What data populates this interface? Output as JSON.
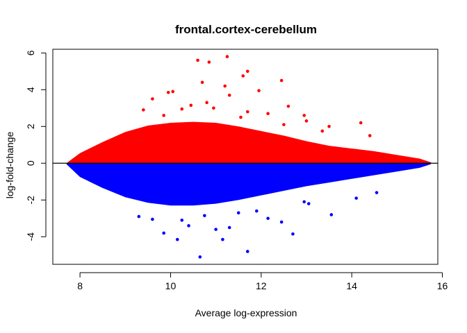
{
  "chart_data": {
    "type": "scatter",
    "title": "frontal.cortex-cerebellum",
    "xlabel": "Average log-expression",
    "ylabel": "log-fold-change",
    "xlim": [
      7.4,
      15.9
    ],
    "ylim": [
      -5.5,
      6.2
    ],
    "xticks": [
      8,
      10,
      12,
      14,
      16
    ],
    "yticks": [
      -4,
      -2,
      0,
      2,
      4,
      6
    ],
    "hline": 0,
    "colors": {
      "up": "#ff0000",
      "down": "#0000ff",
      "frame": "#000000"
    },
    "envelope": {
      "x": [
        7.7,
        8.0,
        8.5,
        9.0,
        9.5,
        10.0,
        10.5,
        11.0,
        11.5,
        12.0,
        12.5,
        13.0,
        13.5,
        14.0,
        14.5,
        15.0,
        15.5,
        15.75
      ],
      "upper": [
        0.0,
        0.55,
        1.15,
        1.7,
        2.05,
        2.2,
        2.25,
        2.2,
        2.0,
        1.75,
        1.5,
        1.2,
        0.95,
        0.8,
        0.65,
        0.45,
        0.25,
        0.05
      ],
      "lower": [
        -0.05,
        -0.75,
        -1.35,
        -1.85,
        -2.15,
        -2.3,
        -2.3,
        -2.2,
        -2.0,
        -1.75,
        -1.5,
        -1.25,
        -1.05,
        -0.85,
        -0.65,
        -0.45,
        -0.25,
        -0.05
      ]
    },
    "series": [
      {
        "color": "up",
        "x": [
          10.6,
          10.85,
          11.25,
          11.6,
          11.7,
          10.7,
          11.2,
          12.45,
          11.95,
          10.05,
          9.95,
          9.6,
          11.3,
          10.8,
          11.7,
          12.6,
          14.2,
          13.0,
          12.5,
          13.5,
          9.4,
          10.45,
          10.95,
          12.15,
          11.55,
          10.25,
          9.85,
          14.4,
          12.95,
          13.35
        ],
        "y": [
          5.6,
          5.5,
          5.8,
          4.75,
          5.0,
          4.4,
          4.2,
          4.5,
          3.95,
          3.9,
          3.85,
          3.5,
          3.7,
          3.3,
          2.8,
          3.1,
          2.2,
          2.3,
          2.1,
          2.0,
          2.9,
          3.15,
          3.0,
          2.7,
          2.5,
          2.95,
          2.6,
          1.5,
          2.6,
          1.75
        ]
      },
      {
        "color": "down",
        "x": [
          10.65,
          11.7,
          10.15,
          11.15,
          11.0,
          9.85,
          10.4,
          12.7,
          13.05,
          12.45,
          12.15,
          13.55,
          14.1,
          11.3,
          9.6,
          9.3,
          10.75,
          11.9,
          12.95,
          14.55,
          10.25,
          11.5
        ],
        "y": [
          -5.1,
          -4.8,
          -4.15,
          -4.15,
          -3.6,
          -3.8,
          -3.4,
          -3.85,
          -2.2,
          -3.2,
          -3.0,
          -2.8,
          -1.9,
          -3.5,
          -3.05,
          -2.9,
          -2.85,
          -2.6,
          -2.1,
          -1.6,
          -3.1,
          -2.7
        ]
      }
    ]
  }
}
